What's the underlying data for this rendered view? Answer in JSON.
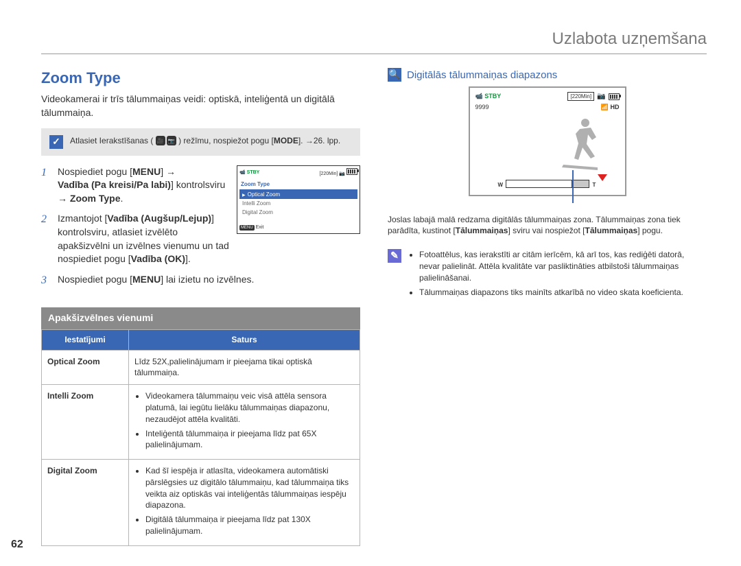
{
  "header": {
    "title": "Uzlabota uzņemšana"
  },
  "left": {
    "section_title": "Zoom Type",
    "intro": "Videokamerai ir trīs tālummaiņas veidi: optiskā, inteliģentā un digitālā tālummaiņa.",
    "grey_note": {
      "text_before": "Atlasiet Ierakstīšanas (",
      "text_after": ") režīmu, nospiežot pogu [",
      "mode_label": "MODE",
      "page_ref": "]. →26. lpp."
    },
    "steps": {
      "s1_a": "Nospiediet pogu [",
      "s1_menu": "MENU",
      "s1_b": "] → ",
      "s1_bold1": "Vadība (Pa kreisi/Pa labi)",
      "s1_c": "] kontrolsviru → ",
      "s1_bold2": "Zoom Type",
      "s1_end": ".",
      "s2_a": "Izmantojot [",
      "s2_bold1": "Vadība (Augšup/Lejup)",
      "s2_b": "] kontrolsviru, atlasiet izvēlēto apakšizvēlni un izvēlnes vienumu un tad nospiediet pogu [",
      "s2_bold2": "Vadība (OK)",
      "s2_end": "].",
      "s3_a": "Nospiediet pogu [",
      "s3_menu": "MENU",
      "s3_b": "] lai izietu no izvēlnes."
    },
    "mini_lcd": {
      "stby": "STBY",
      "time": "[220Min]",
      "menu_title": "Zoom Type",
      "items": [
        "Optical Zoom",
        "Intelli Zoom",
        "Digital Zoom"
      ],
      "sel_index": 0,
      "exit_btn": "MENU",
      "exit_label": "Exit"
    },
    "subsection_bar": "Apakšizvēlnes vienumi",
    "table": {
      "headers": [
        "Iestatījumi",
        "Saturs"
      ],
      "rows": [
        {
          "name": "Optical Zoom",
          "desc_plain": "Līdz 52X,palielinājumam ir pieejama tikai optiskā tālummaiņa."
        },
        {
          "name": "Intelli Zoom",
          "desc_list": [
            "Videokamera tālummaiņu veic visā attēla sensora platumā, lai iegūtu lielāku tālummaiņas diapazonu, nezaudējot attēla kvalitāti.",
            "Inteliģentā tālummaiņa ir pieejama līdz pat 65X palielinājumam."
          ]
        },
        {
          "name": "Digital Zoom",
          "desc_list": [
            "Kad šī iespēja ir atlasīta, videokamera automātiski pārslēgsies uz digitālo tālummaiņu, kad tālummaiņa tiks veikta aiz optiskās vai inteliģentās tālummaiņas iespēju diapazona.",
            "Digitālā tālummaiņa ir pieejama līdz pat 130X palielinājumam."
          ]
        }
      ]
    }
  },
  "right": {
    "box_title": "Digitālās tālummaiņas diapazons",
    "lcd": {
      "stby": "STBY",
      "time": "[220Min]",
      "count": "9999",
      "hd_badge": "HD",
      "w": "W",
      "t": "T"
    },
    "caption_a": "Joslas labajā malā redzama digitālās tālummaiņas zona. Tālummaiņas zona tiek parādīta, kustinot [",
    "caption_lever": "Tālummaiņas",
    "caption_b": "] sviru vai nospiežot [",
    "caption_btn": "Tālummaiņas",
    "caption_c": "] pogu.",
    "side_notes": [
      "Fotoattēlus, kas ierakstīti ar citām ierīcēm, kā arī tos, kas rediģēti datorā, nevar palielināt. Attēla kvalitāte var pasliktināties atbilstoši tālummaiņas palielināšanai.",
      "Tālummaiņas diapazons tiks mainīts atkarībā no video skata koeficienta."
    ]
  },
  "page_number": "62"
}
